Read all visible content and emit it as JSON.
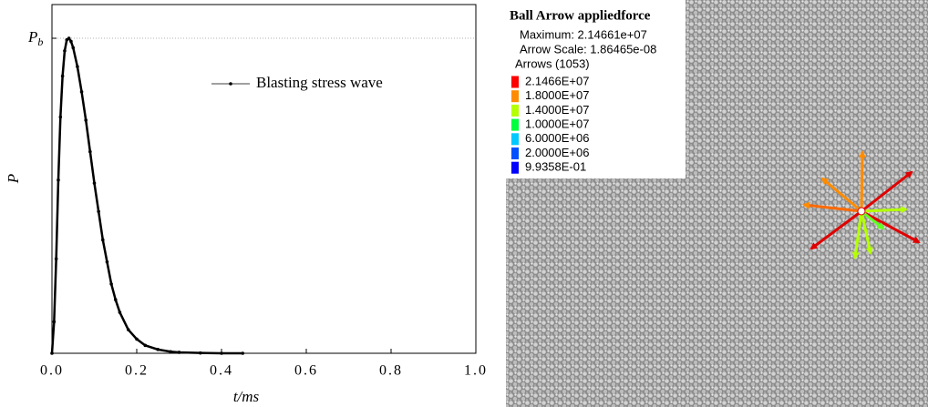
{
  "chart_data": {
    "type": "line",
    "x_label": "t/ms",
    "y_label": "P",
    "x": [
      0,
      0.005,
      0.01,
      0.015,
      0.02,
      0.025,
      0.03,
      0.035,
      0.04,
      0.045,
      0.05,
      0.06,
      0.07,
      0.08,
      0.09,
      0.1,
      0.11,
      0.12,
      0.13,
      0.14,
      0.15,
      0.16,
      0.18,
      0.2,
      0.22,
      0.25,
      0.28,
      0.3,
      0.35,
      0.4,
      0.45
    ],
    "series": [
      {
        "name": "Blasting stress wave",
        "color": "#000000",
        "values": [
          0,
          0.1,
          0.3,
          0.55,
          0.75,
          0.88,
          0.96,
          0.995,
          1,
          0.99,
          0.97,
          0.91,
          0.83,
          0.74,
          0.64,
          0.54,
          0.45,
          0.36,
          0.29,
          0.22,
          0.17,
          0.13,
          0.075,
          0.045,
          0.025,
          0.012,
          0.005,
          0.003,
          0.001,
          0,
          0
        ]
      }
    ],
    "xlim": [
      0,
      1
    ],
    "ylim": [
      0,
      1.107
    ],
    "xticks": [
      {
        "value": 0,
        "label": "0.0"
      },
      {
        "value": 0.2,
        "label": "0.2"
      },
      {
        "value": 0.4,
        "label": "0.4"
      },
      {
        "value": 0.6,
        "label": "0.6"
      },
      {
        "value": 0.8,
        "label": "0.8"
      },
      {
        "value": 1,
        "label": "1.0"
      }
    ],
    "yticks": [
      {
        "value": 1,
        "label": "Pb"
      }
    ],
    "grid": true,
    "legend": "top"
  },
  "panel": {
    "title": "Ball Arrow appliedforce",
    "lines": [
      "Maximum: 2.14661e+07",
      "Arrow Scale: 1.86465e-08",
      "Arrows (1053)"
    ],
    "scale": [
      {
        "label": "2.1466E+07",
        "color": "#ff0000"
      },
      {
        "label": "1.8000E+07",
        "color": "#ff8c00"
      },
      {
        "label": "1.4000E+07",
        "color": "#b4ff00"
      },
      {
        "label": "1.0000E+07",
        "color": "#00ff3c"
      },
      {
        "label": "6.0000E+06",
        "color": "#00c8ff"
      },
      {
        "label": "2.0000E+06",
        "color": "#0050ff"
      },
      {
        "label": "9.9358E-01",
        "color": "#0000ff"
      }
    ]
  }
}
